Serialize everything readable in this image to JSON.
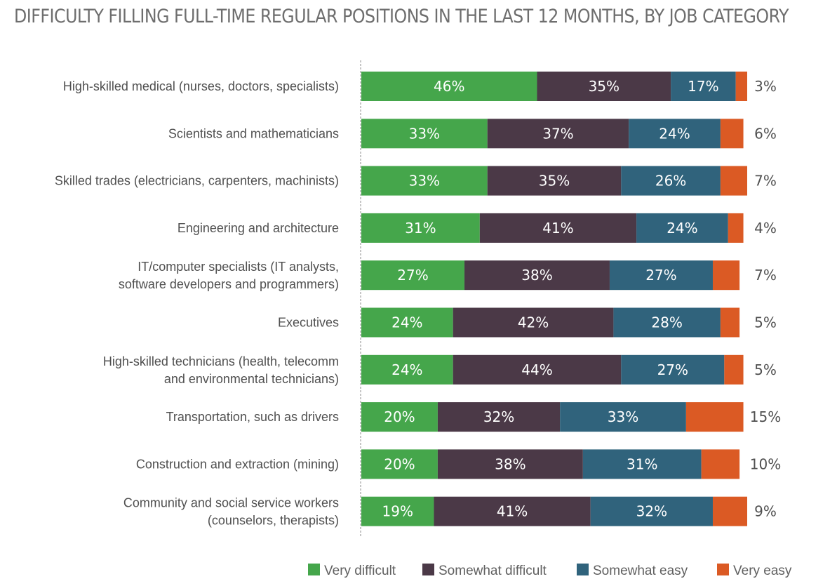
{
  "chart_data": {
    "type": "bar",
    "orientation": "horizontal",
    "stacked": true,
    "title": "DIFFICULTY FILLING FULL-TIME REGULAR POSITIONS IN THE LAST 12 MONTHS, BY JOB CATEGORY",
    "categories": [
      [
        "High-skilled medical (nurses, doctors, specialists)"
      ],
      [
        "Scientists and mathematicians"
      ],
      [
        "Skilled trades (electricians, carpenters, machinists)"
      ],
      [
        "Engineering and architecture"
      ],
      [
        "IT/computer specialists (IT analysts,",
        "software developers and programmers)"
      ],
      [
        "Executives"
      ],
      [
        "High-skilled technicians (health, telecomm",
        "and environmental technicians)"
      ],
      [
        "Transportation, such as drivers"
      ],
      [
        "Construction and extraction (mining)"
      ],
      [
        "Community and social service workers",
        "(counselors, therapists)"
      ]
    ],
    "series": [
      {
        "name": "Very difficult",
        "color": "#45a64b",
        "values": [
          46,
          33,
          33,
          31,
          27,
          24,
          24,
          20,
          20,
          19
        ]
      },
      {
        "name": "Somewhat difficult",
        "color": "#4b3947",
        "values": [
          35,
          37,
          35,
          41,
          38,
          42,
          44,
          32,
          38,
          41
        ]
      },
      {
        "name": "Somewhat easy",
        "color": "#30637c",
        "values": [
          17,
          24,
          26,
          24,
          27,
          28,
          27,
          33,
          31,
          32
        ]
      },
      {
        "name": "Very easy",
        "color": "#db5a24",
        "values": [
          3,
          6,
          7,
          4,
          7,
          5,
          5,
          15,
          10,
          9
        ]
      }
    ],
    "value_suffix": "%",
    "xlim": [
      0,
      101
    ],
    "legend_position": "bottom-right",
    "grid": false
  }
}
